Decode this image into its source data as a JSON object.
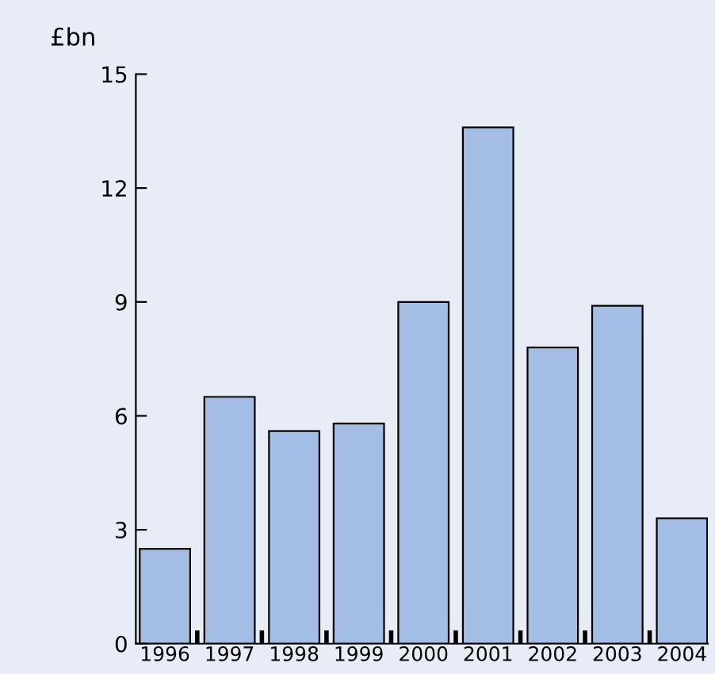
{
  "chart_data": {
    "type": "bar",
    "ylabel": "£bn",
    "categories": [
      "1996",
      "1997",
      "1998",
      "1999",
      "2000",
      "2001",
      "2002",
      "2003",
      "2004"
    ],
    "values": [
      2.5,
      6.5,
      5.6,
      5.8,
      9.0,
      13.6,
      7.8,
      8.9,
      3.3
    ],
    "color": "#a4bde4",
    "ylim": [
      0,
      15
    ],
    "yticks": [
      0,
      3,
      6,
      9,
      12,
      15
    ],
    "grid": false
  }
}
